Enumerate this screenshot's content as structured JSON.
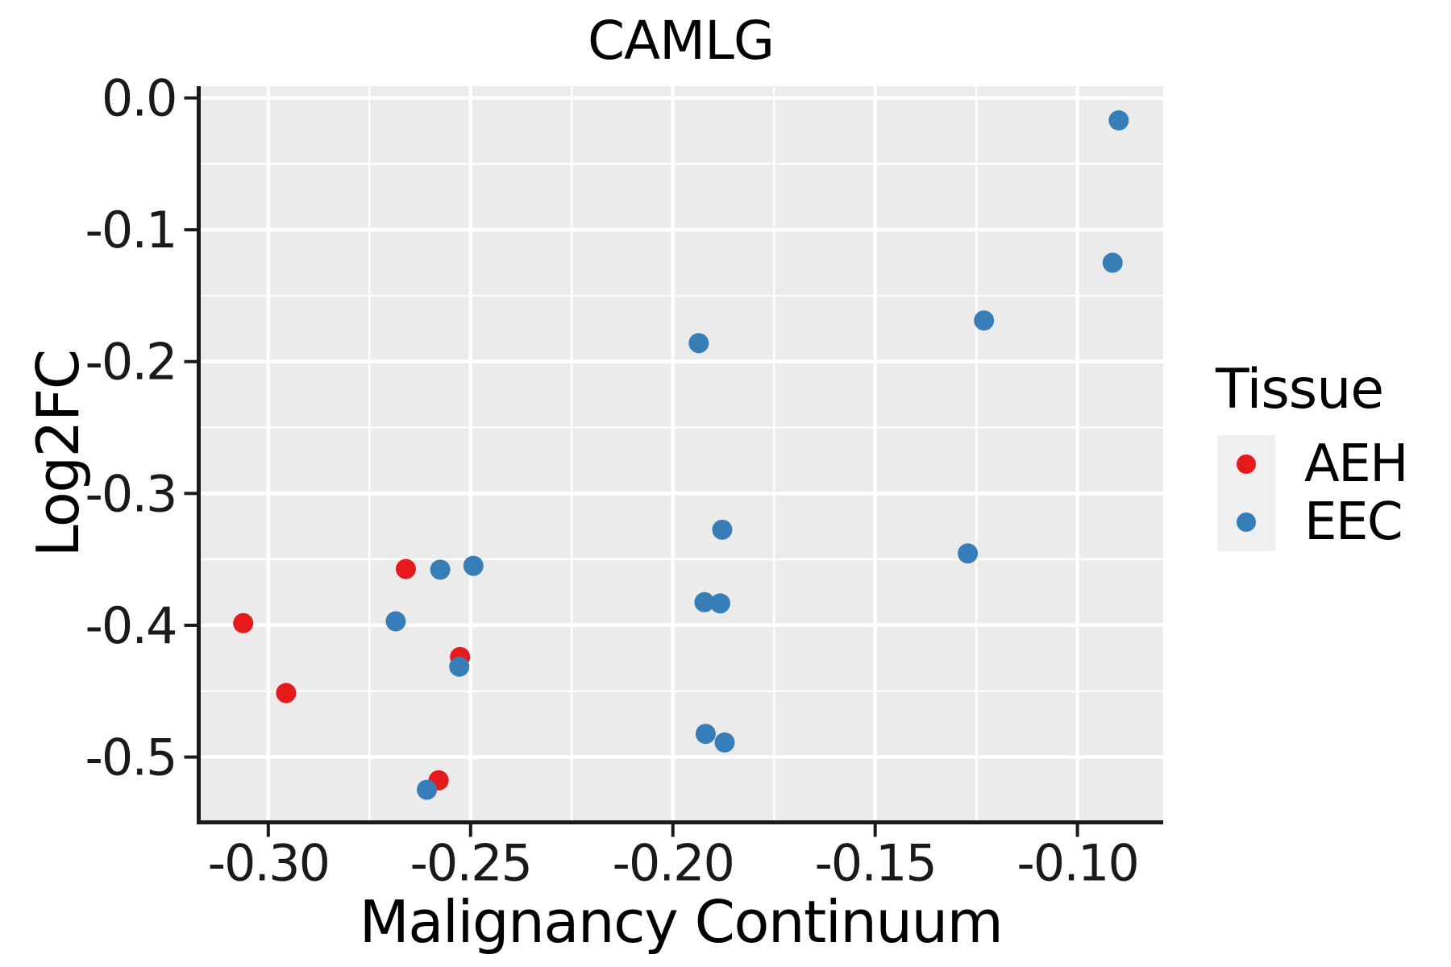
{
  "figure": {
    "title": "CAMLG"
  },
  "legend": {
    "title": "Tissue",
    "items": [
      {
        "label": "AEH",
        "color": "#e41a1c"
      },
      {
        "label": "EEC",
        "color": "#377eb8"
      }
    ]
  },
  "chart_data": {
    "type": "scatter",
    "title": "CAMLG",
    "xlabel": "Malignancy Continuum",
    "ylabel": "Log2FC",
    "xlim": [
      -0.3172,
      -0.0788
    ],
    "ylim": [
      -0.5495,
      0.0089
    ],
    "grid": true,
    "legend_position": "right",
    "x_ticks": {
      "values": [
        -0.3,
        -0.25,
        -0.2,
        -0.15,
        -0.1
      ],
      "labels": [
        "-0.30",
        "-0.25",
        "-0.20",
        "-0.15",
        "-0.10"
      ]
    },
    "y_ticks": {
      "values": [
        0.0,
        -0.1,
        -0.2,
        -0.3,
        -0.4,
        -0.5
      ],
      "labels": [
        "0.0",
        "-0.1",
        "-0.2",
        "-0.3",
        "-0.4",
        "-0.5"
      ]
    },
    "x_minor_ticks": [
      -0.275,
      -0.225,
      -0.175,
      -0.125
    ],
    "y_minor_ticks": [
      -0.05,
      -0.15,
      -0.25,
      -0.35,
      -0.45
    ],
    "point_radius": 12.5,
    "series": [
      {
        "name": "AEH",
        "color": "#e41a1c",
        "points": [
          [
            -0.3062,
            -0.3984
          ],
          [
            -0.2956,
            -0.4514
          ],
          [
            -0.266,
            -0.3573
          ],
          [
            -0.2526,
            -0.4241
          ],
          [
            -0.2579,
            -0.5176
          ]
        ]
      },
      {
        "name": "EEC",
        "color": "#377eb8",
        "points": [
          [
            -0.2685,
            -0.397
          ],
          [
            -0.2608,
            -0.5248
          ],
          [
            -0.2575,
            -0.3578
          ],
          [
            -0.2528,
            -0.4314
          ],
          [
            -0.2493,
            -0.3549
          ],
          [
            -0.1936,
            -0.186
          ],
          [
            -0.1922,
            -0.3825
          ],
          [
            -0.1919,
            -0.4824
          ],
          [
            -0.1878,
            -0.3275
          ],
          [
            -0.1883,
            -0.3834
          ],
          [
            -0.1872,
            -0.4889
          ],
          [
            -0.1271,
            -0.3455
          ],
          [
            -0.1231,
            -0.1688
          ],
          [
            -0.0913,
            -0.125
          ],
          [
            -0.0898,
            -0.017
          ]
        ]
      }
    ]
  },
  "style": {
    "panel_bg": "#ebebeb",
    "grid_color": "#ffffff",
    "axis_color": "#1a1a1a",
    "text_color": "#000000",
    "legend_key_bg": "#efefef"
  }
}
